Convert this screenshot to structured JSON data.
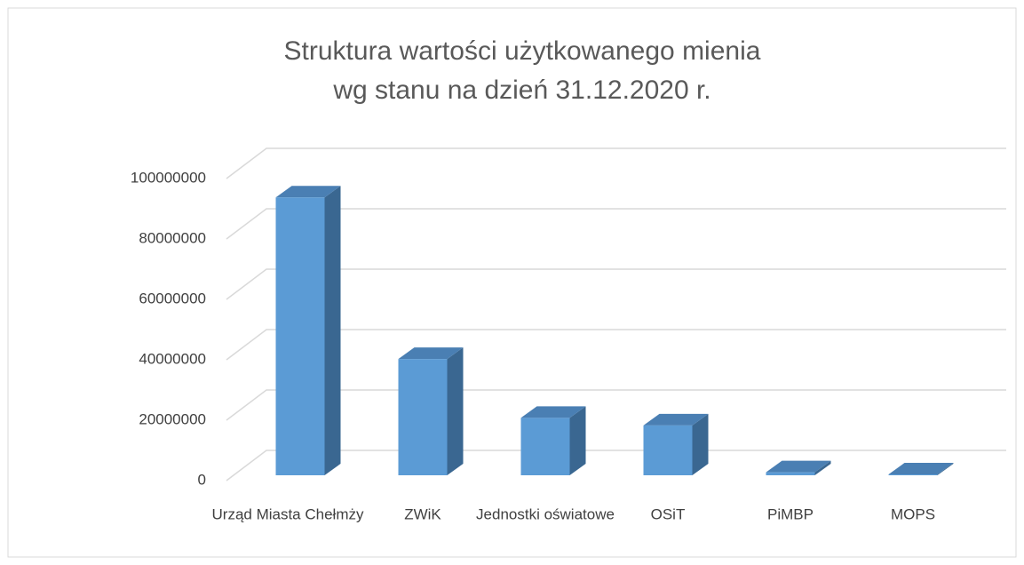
{
  "chart_data": {
    "type": "bar3d",
    "title": [
      "Struktura wartości użytkowanego mienia",
      "wg stanu na dzień 31.12.2020 r."
    ],
    "categories": [
      "Urząd Miasta Chełmży",
      "ZWiK",
      "Jednostki oświatowe",
      "OSiT",
      "PiMBP",
      "MOPS"
    ],
    "values": [
      92000000,
      38500000,
      19000000,
      16500000,
      1000000,
      300000
    ],
    "color": "#5b9bd5",
    "ylim": [
      0,
      100000000
    ],
    "yticks": [
      0,
      20000000,
      40000000,
      60000000,
      80000000,
      100000000
    ],
    "grid": true
  }
}
